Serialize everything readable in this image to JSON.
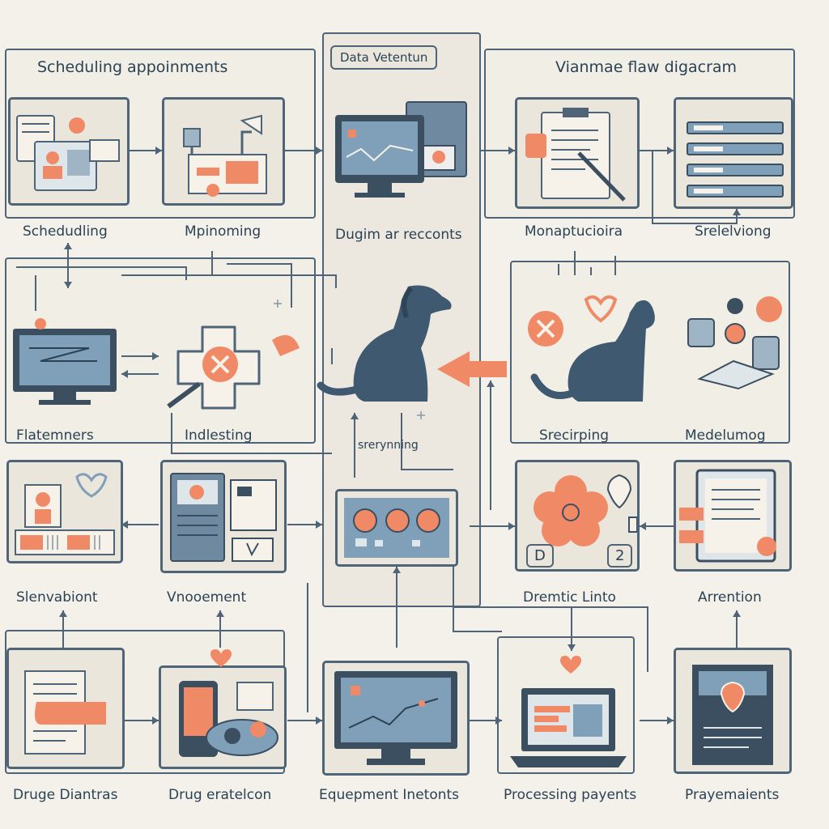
{
  "colors": {
    "background": "#f4f1ea",
    "stroke": "#4f6476",
    "dark": "#2b4255",
    "accent": "#f08a66",
    "screen": "#7fa0b8",
    "paper": "#ebe6db"
  },
  "headers": {
    "left": "Scheduling appoinments",
    "center": "Data Vetentun",
    "right": "Vianmae flaw digacram"
  },
  "labels": {
    "r1_c1": "Schedudling",
    "r1_c2": "Mpinoming",
    "r1_c3": "Dugim ar recconts",
    "r1_c4": "Monaptucioira",
    "r1_c5": "Srelelviong",
    "r2_c1": "Flatemners",
    "r2_c2": "Indlesting",
    "r2_c3": "srerynning",
    "r2_c4": "Srecirping",
    "r2_c5": "Medelumog",
    "r3_c1": "Slenvabiont",
    "r3_c2": "Vnooement",
    "r3_c4": "Dremtic Linto",
    "r3_c5": "Arrention",
    "r4_c1": "Druge Diantras",
    "r4_c2": "Drug eratelcon",
    "r4_c3": "Equepment Inetonts",
    "r4_c4": "Processing payents",
    "r4_c5": "Prayemaients"
  },
  "badges": {
    "d": "D",
    "two": "2"
  },
  "icons": [
    "profile-card-icon",
    "desk-lamp-workstation-icon",
    "computer-monitor-icon",
    "clipboard-pen-icon",
    "database-rows-icon",
    "computer-monitor-icon",
    "medical-cross-magnifier-icon",
    "dog-icon",
    "dog-icon",
    "database-coins-icon",
    "id-card-icon",
    "server-tower-icon",
    "control-panel-icon",
    "flower-badge-icon",
    "clipboard-icon",
    "document-hand-icon",
    "phone-device-icon",
    "line-chart-monitor-icon",
    "laptop-icon",
    "shield-document-icon",
    "heart-icon"
  ]
}
